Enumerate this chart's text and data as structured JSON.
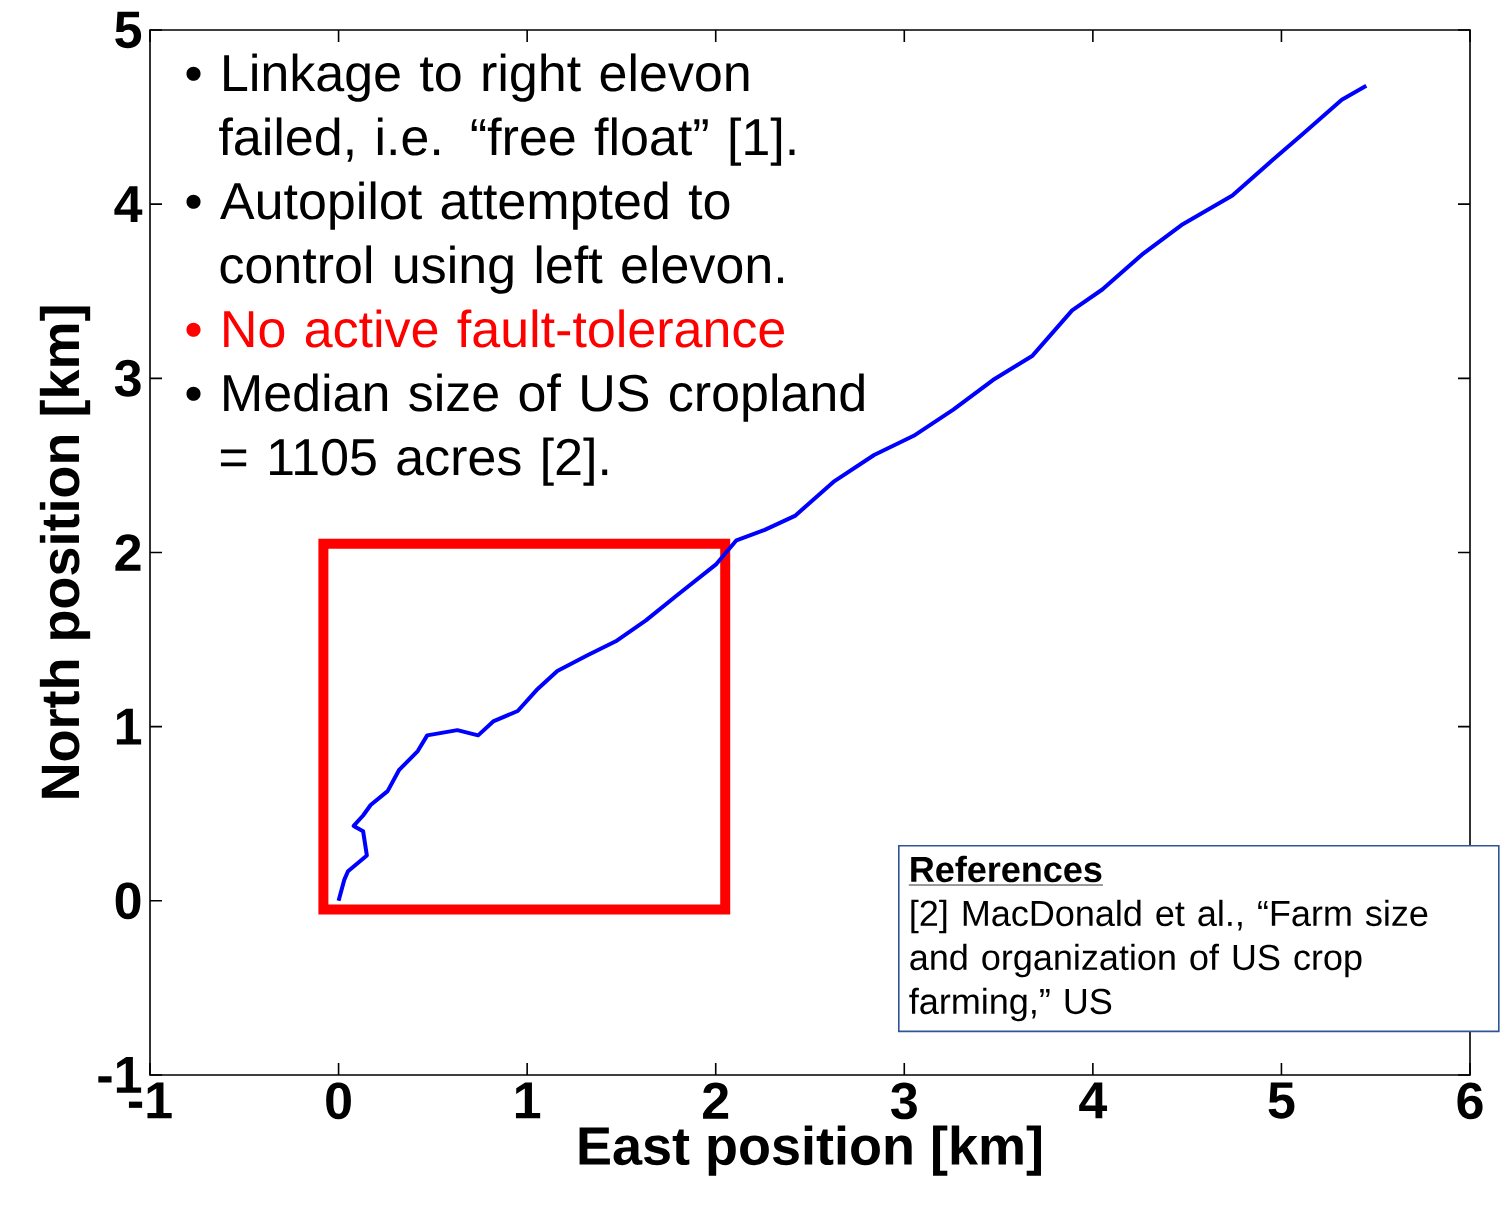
{
  "chart_data": {
    "type": "line",
    "xlabel": "East position [km]",
    "ylabel": "North position [km]",
    "xlim": [
      -1,
      6
    ],
    "ylim": [
      -1,
      5
    ],
    "xticks": [
      -1,
      0,
      1,
      2,
      3,
      4,
      5,
      6
    ],
    "yticks": [
      -1,
      0,
      1,
      2,
      3,
      4,
      5
    ],
    "grid": false,
    "line_style": "solid",
    "series": [
      {
        "color": "#0000ff",
        "x": [
          0,
          0.03,
          0.05,
          0.15,
          0.13,
          0.08,
          0.13,
          0.17,
          0.26,
          0.32,
          0.42,
          0.47,
          0.63,
          0.74,
          0.82,
          0.95,
          1.05,
          1.16,
          1.32,
          1.47,
          1.63,
          1.79,
          2.0,
          2.11,
          2.26,
          2.42,
          2.63,
          2.84,
          3.05,
          3.26,
          3.47,
          3.68,
          3.89,
          4.05,
          4.26,
          4.47,
          4.74,
          4.95,
          5.11,
          5.32,
          5.45
        ],
        "values": [
          0,
          0.12,
          0.17,
          0.26,
          0.4,
          0.43,
          0.49,
          0.55,
          0.63,
          0.75,
          0.86,
          0.95,
          0.98,
          0.95,
          1.03,
          1.09,
          1.21,
          1.32,
          1.41,
          1.49,
          1.61,
          1.75,
          1.93,
          2.07,
          2.13,
          2.21,
          2.41,
          2.56,
          2.67,
          2.82,
          2.99,
          3.13,
          3.39,
          3.51,
          3.71,
          3.88,
          4.05,
          4.25,
          4.4,
          4.6,
          4.68
        ]
      }
    ],
    "annotations": [
      "• Linkage to right elevon failed, i.e. “free float” [1].",
      "• Autopilot attempted to control using left elevon.",
      "• No active fault-tolerance",
      "• Median size of US cropland = 1105 acres [2].",
      "References",
      "[2] MacDonald et al., “Farm size and organization of US crop farming,” US"
    ]
  }
}
